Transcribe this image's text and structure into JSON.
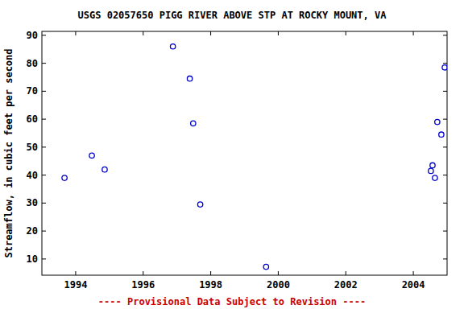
{
  "chart_data": {
    "type": "scatter",
    "title": "USGS 02057650 PIGG RIVER ABOVE STP AT ROCKY MOUNT, VA",
    "y_label": "Streamflow, in cubic feet per second",
    "annotations": [
      "---- Provisional Data Subject to Revision ----"
    ],
    "x": [
      1993.67,
      1994.48,
      1994.86,
      1996.88,
      1997.38,
      1997.48,
      1997.69,
      1999.64,
      2004.52,
      2004.57,
      2004.64,
      2004.71,
      2004.83,
      2004.93
    ],
    "values": [
      39,
      47,
      42,
      86,
      74.5,
      58.5,
      29.5,
      7.2,
      41.5,
      43.5,
      39,
      59,
      54.5,
      78.5
    ],
    "color": "#0000cc",
    "marker": "circle",
    "xlim": [
      1993.0,
      2005.0
    ],
    "xticks": [
      1994,
      1996,
      1998,
      2000,
      2002,
      2004
    ],
    "ylim": [
      4.2,
      91.4
    ],
    "yticks": [
      10,
      20,
      30,
      40,
      50,
      60,
      70,
      80,
      90
    ],
    "grid": false
  }
}
